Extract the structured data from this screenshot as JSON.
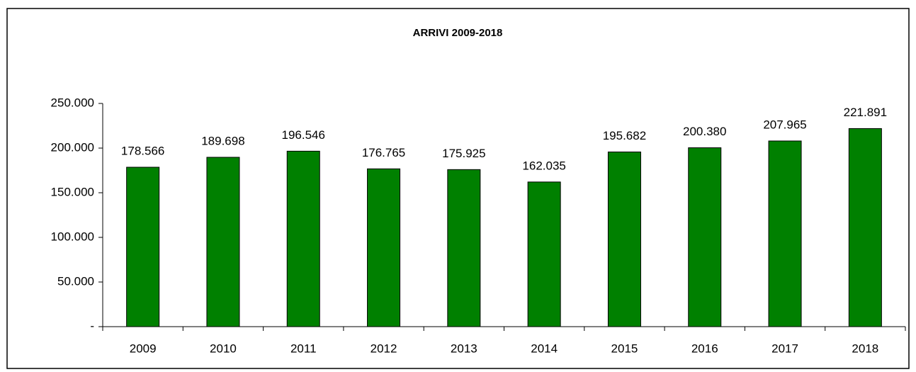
{
  "chart_data": {
    "type": "bar",
    "title": "ARRIVI 2009-2018",
    "categories": [
      "2009",
      "2010",
      "2011",
      "2012",
      "2013",
      "2014",
      "2015",
      "2016",
      "2017",
      "2018"
    ],
    "values": [
      178566,
      189698,
      196546,
      176765,
      175925,
      162035,
      195682,
      200380,
      207965,
      221891
    ],
    "value_labels": [
      "178.566",
      "189.698",
      "196.546",
      "176.765",
      "175.925",
      "162.035",
      "195.682",
      "200.380",
      "207.965",
      "221.891"
    ],
    "color": "#008000",
    "ylim": [
      0,
      250000
    ],
    "yticks": [
      {
        "value": 0,
        "label": "-"
      },
      {
        "value": 50000,
        "label": "50.000"
      },
      {
        "value": 100000,
        "label": "100.000"
      },
      {
        "value": 150000,
        "label": "150.000"
      },
      {
        "value": 200000,
        "label": "200.000"
      },
      {
        "value": 250000,
        "label": "250.000"
      }
    ],
    "grid": false
  }
}
